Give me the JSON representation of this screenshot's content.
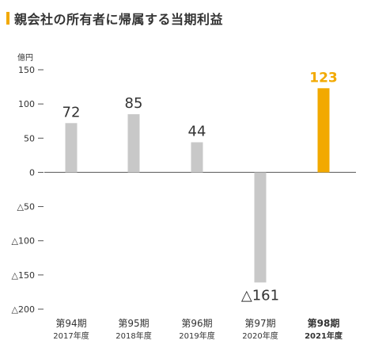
{
  "title": "親会社の所有者に帰属する当期利益",
  "colors": {
    "bar_default": "#c8c8c8",
    "bar_highlight": "#f2a900",
    "axis": "#555555",
    "text": "#333333",
    "accent": "#f2a900"
  },
  "chart_data": {
    "type": "bar",
    "title": "親会社の所有者に帰属する当期利益",
    "unit": "億円",
    "ylim": [
      -200,
      150
    ],
    "yticks": [
      150,
      100,
      50,
      0,
      -50,
      -100,
      -150,
      -200
    ],
    "ytick_labels": [
      "150",
      "100",
      "50",
      "0",
      "△50",
      "△100",
      "△150",
      "△200"
    ],
    "grid": false,
    "categories": [
      "第94期",
      "第95期",
      "第96期",
      "第97期",
      "第98期"
    ],
    "years": [
      "2017年度",
      "2018年度",
      "2019年度",
      "2020年度",
      "2021年度"
    ],
    "values": [
      72,
      85,
      44,
      -161,
      123
    ],
    "value_labels": [
      "72",
      "85",
      "44",
      "△161",
      "123"
    ],
    "highlight_index": 4
  }
}
